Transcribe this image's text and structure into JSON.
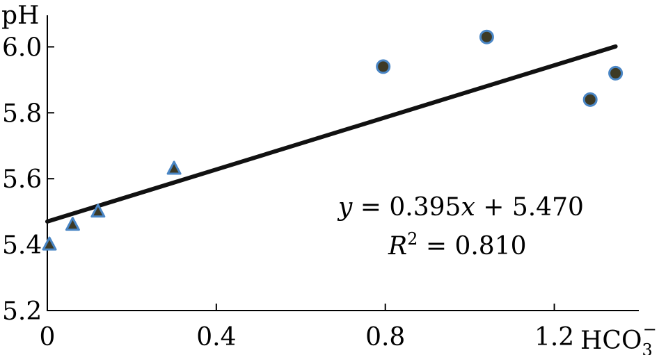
{
  "chart_data": {
    "type": "scatter",
    "ylabel": "pH",
    "xlabel_main": "HCO",
    "xlabel_sub": "3",
    "xlabel_sup": "−",
    "xlim": [
      0,
      1.4
    ],
    "ylim": [
      5.2,
      6.1
    ],
    "x_ticks": [
      0,
      0.4,
      0.8,
      1.2
    ],
    "x_tick_labels": [
      "0",
      "0.4",
      "0.8",
      "1.2"
    ],
    "y_ticks": [
      5.2,
      5.4,
      5.6,
      5.8,
      6.0
    ],
    "y_tick_labels": [
      "5.2",
      "5.4",
      "5.6",
      "5.8",
      "6.0"
    ],
    "grid": false,
    "series": [
      {
        "marker": "triangle",
        "points": [
          {
            "x": 0.005,
            "y": 5.4
          },
          {
            "x": 0.06,
            "y": 5.46
          },
          {
            "x": 0.12,
            "y": 5.5
          },
          {
            "x": 0.3,
            "y": 5.63
          }
        ]
      },
      {
        "marker": "circle",
        "points": [
          {
            "x": 0.795,
            "y": 5.94
          },
          {
            "x": 1.04,
            "y": 6.03
          },
          {
            "x": 1.285,
            "y": 5.84
          },
          {
            "x": 1.345,
            "y": 5.92
          }
        ]
      }
    ],
    "fit_line": {
      "x_start": 0.0,
      "x_end": 1.345,
      "slope": 0.395,
      "intercept": 5.47
    },
    "annotations": {
      "equation_y": "y",
      "equation_eq": " = 0.395",
      "equation_x": "x",
      "equation_rest": " + 5.470",
      "r2_label": "R",
      "r2_sup": "2",
      "r2_value": " = 0.810"
    },
    "colors": {
      "marker_fill": "#3d3a26",
      "marker_stroke": "#4a86c5",
      "line": "#111111",
      "axis": "#000000"
    }
  }
}
